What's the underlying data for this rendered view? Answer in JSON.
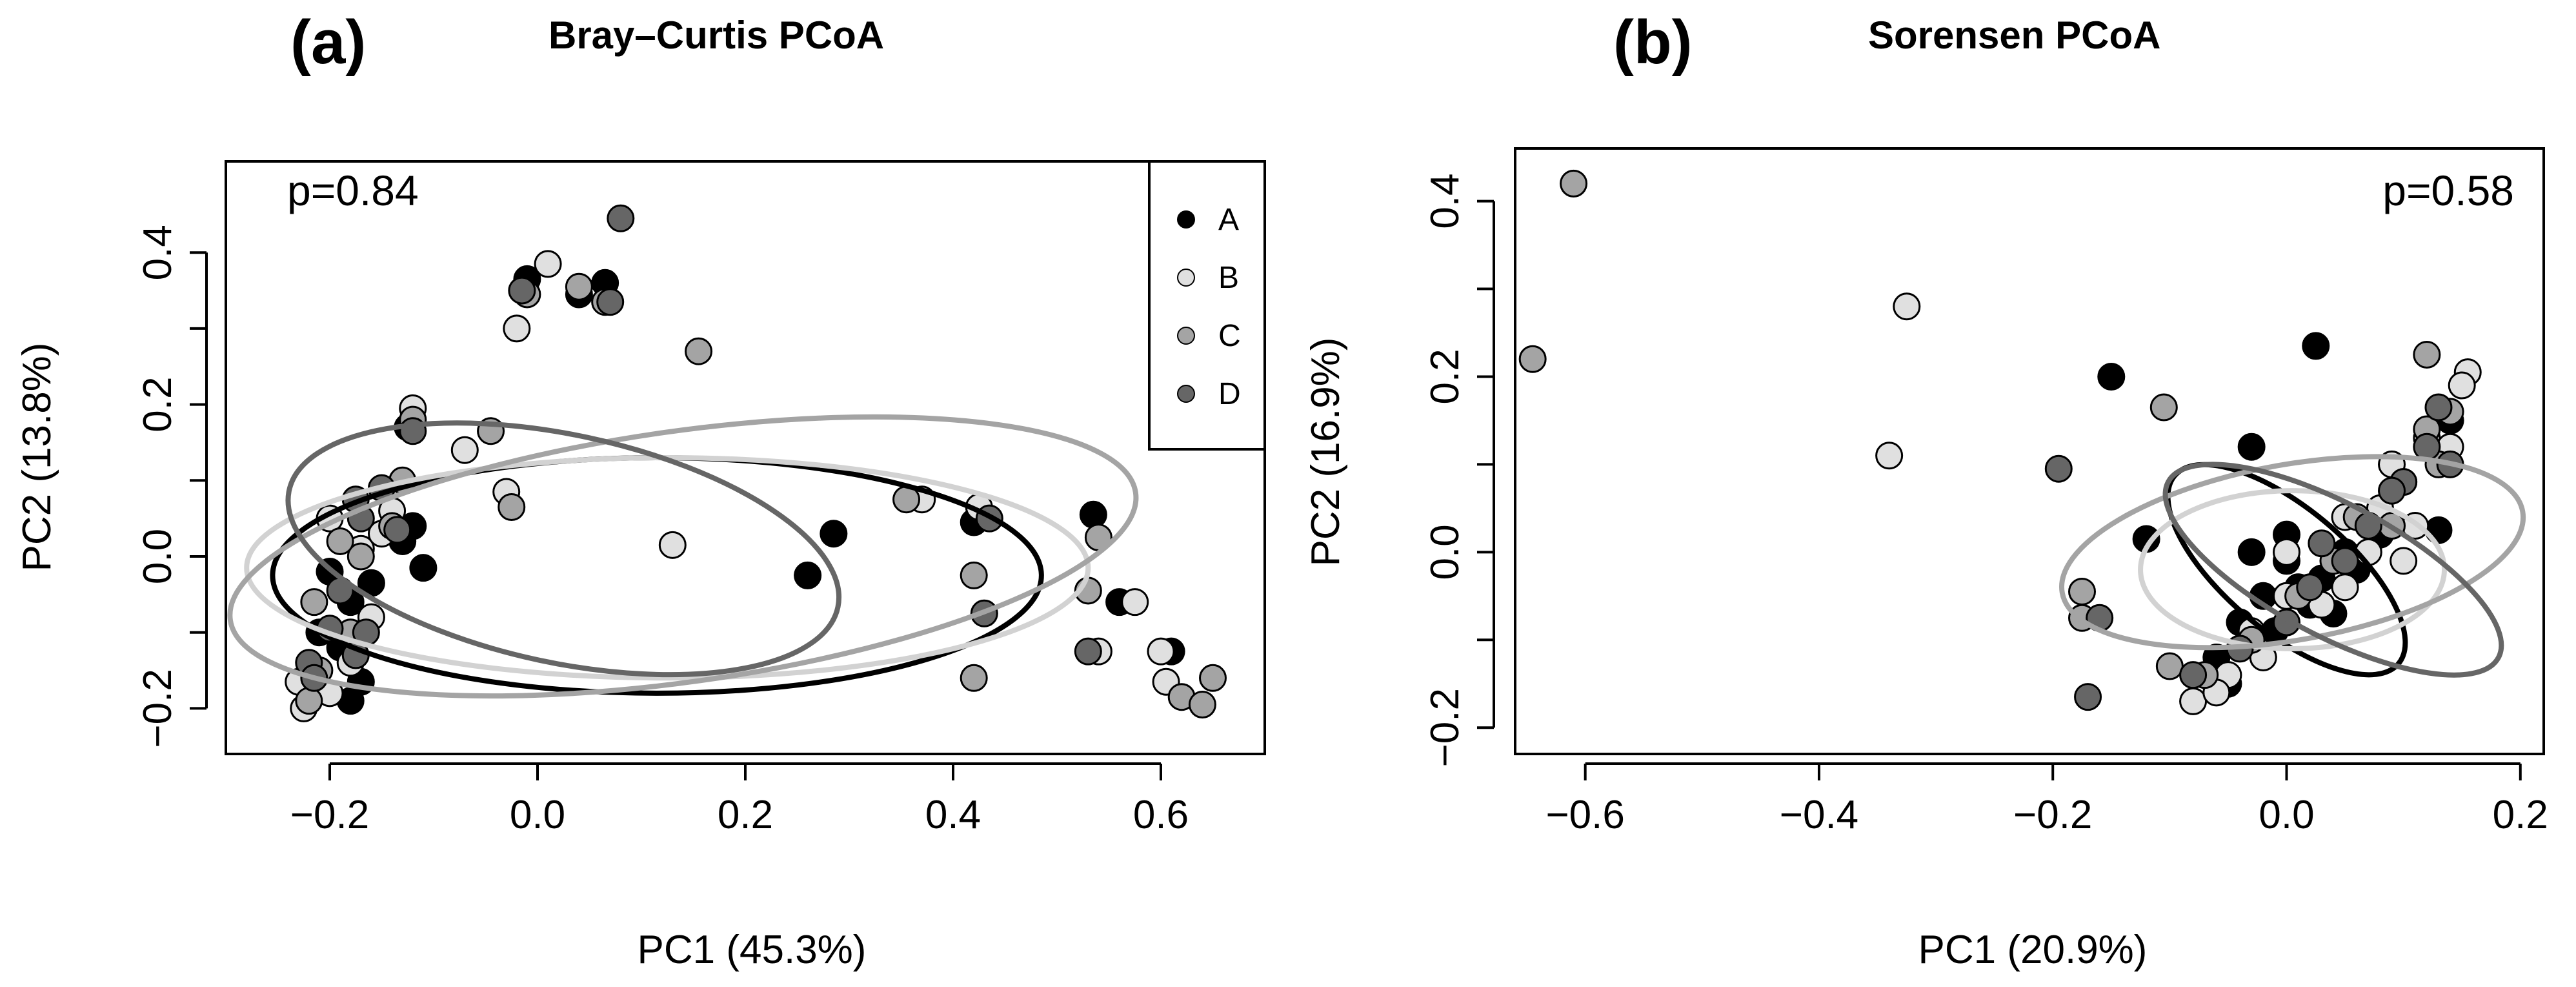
{
  "palette": {
    "A": "#000000",
    "B": "#e0e0e0",
    "C": "#a4a4a4",
    "D": "#666666",
    "B_ellipse": "#d2d2d2"
  },
  "chart_data": [
    {
      "id": "a",
      "panel_letter": "(a)",
      "type": "scatter",
      "title": "Bray–Curtis PCoA",
      "xlabel": "PC1 (45.3%)",
      "ylabel": "PC2 (13.8%)",
      "xlim": [
        -0.3,
        0.7
      ],
      "ylim": [
        -0.26,
        0.52
      ],
      "xticks": [
        {
          "v": -0.2,
          "label": "−0.2"
        },
        {
          "v": 0.0,
          "label": "0.0"
        },
        {
          "v": 0.2,
          "label": "0.2"
        },
        {
          "v": 0.4,
          "label": "0.4"
        },
        {
          "v": 0.6,
          "label": "0.6"
        }
      ],
      "yticks": [
        {
          "v": -0.2,
          "label": "−0.2"
        },
        {
          "v": 0.0,
          "label": "0.0"
        },
        {
          "v": 0.2,
          "label": "0.2"
        },
        {
          "v": 0.4,
          "label": "0.4"
        }
      ],
      "annotation": "p=0.84",
      "annotation_position": "top-left",
      "legend_position": "top-right",
      "legend": [
        {
          "key": "A",
          "label": "A"
        },
        {
          "key": "B",
          "label": "B"
        },
        {
          "key": "C",
          "label": "C"
        },
        {
          "key": "D",
          "label": "D"
        }
      ],
      "series": [
        {
          "key": "A",
          "name": "A",
          "points": [
            [
              -0.01,
              0.365
            ],
            [
              0.04,
              0.345
            ],
            [
              0.065,
              0.36
            ],
            [
              -0.2,
              -0.02
            ],
            [
              -0.18,
              -0.06
            ],
            [
              -0.16,
              -0.035
            ],
            [
              -0.13,
              0.02
            ],
            [
              -0.12,
              0.04
            ],
            [
              -0.11,
              -0.015
            ],
            [
              -0.17,
              -0.165
            ],
            [
              -0.18,
              -0.19
            ],
            [
              -0.21,
              -0.1
            ],
            [
              -0.125,
              0.17
            ],
            [
              0.285,
              0.03
            ],
            [
              0.26,
              -0.025
            ],
            [
              0.42,
              0.045
            ],
            [
              0.535,
              0.055
            ],
            [
              0.56,
              -0.06
            ],
            [
              0.61,
              -0.125
            ],
            [
              -0.22,
              -0.17
            ],
            [
              -0.19,
              -0.12
            ]
          ]
        },
        {
          "key": "B",
          "name": "B",
          "points": [
            [
              0.01,
              0.385
            ],
            [
              -0.02,
              0.3
            ],
            [
              -0.12,
              0.195
            ],
            [
              -0.07,
              0.14
            ],
            [
              -0.03,
              0.085
            ],
            [
              0.13,
              0.015
            ],
            [
              0.37,
              0.075
            ],
            [
              0.425,
              0.065
            ],
            [
              0.575,
              -0.06
            ],
            [
              0.6,
              -0.125
            ],
            [
              0.605,
              -0.165
            ],
            [
              0.54,
              -0.125
            ],
            [
              -0.2,
              0.05
            ],
            [
              -0.17,
              0.01
            ],
            [
              -0.15,
              0.03
            ],
            [
              -0.16,
              -0.08
            ],
            [
              -0.2,
              -0.18
            ],
            [
              -0.225,
              -0.2
            ],
            [
              -0.23,
              -0.165
            ],
            [
              -0.18,
              -0.14
            ],
            [
              -0.14,
              0.06
            ]
          ]
        },
        {
          "key": "C",
          "name": "C",
          "points": [
            [
              0.155,
              0.27
            ],
            [
              0.04,
              0.355
            ],
            [
              0.065,
              0.335
            ],
            [
              -0.01,
              0.345
            ],
            [
              -0.045,
              0.165
            ],
            [
              -0.025,
              0.065
            ],
            [
              0.355,
              0.075
            ],
            [
              0.42,
              -0.025
            ],
            [
              0.42,
              -0.16
            ],
            [
              0.53,
              -0.045
            ],
            [
              0.54,
              0.025
            ],
            [
              0.62,
              -0.185
            ],
            [
              0.64,
              -0.195
            ],
            [
              0.65,
              -0.16
            ],
            [
              -0.12,
              0.18
            ],
            [
              -0.13,
              0.1
            ],
            [
              -0.14,
              0.04
            ],
            [
              -0.17,
              0.0
            ],
            [
              -0.19,
              0.02
            ],
            [
              -0.18,
              -0.1
            ],
            [
              -0.215,
              -0.06
            ],
            [
              -0.21,
              -0.15
            ],
            [
              -0.22,
              -0.19
            ]
          ]
        },
        {
          "key": "D",
          "name": "D",
          "points": [
            [
              0.08,
              0.445
            ],
            [
              0.07,
              0.335
            ],
            [
              -0.015,
              0.35
            ],
            [
              -0.12,
              0.165
            ],
            [
              -0.15,
              0.09
            ],
            [
              -0.17,
              0.05
            ],
            [
              -0.175,
              0.075
            ],
            [
              -0.135,
              0.035
            ],
            [
              -0.19,
              -0.045
            ],
            [
              -0.2,
              -0.095
            ],
            [
              -0.175,
              -0.13
            ],
            [
              -0.22,
              -0.14
            ],
            [
              -0.215,
              -0.16
            ],
            [
              0.435,
              0.05
            ],
            [
              0.43,
              -0.075
            ],
            [
              0.53,
              -0.125
            ],
            [
              -0.165,
              -0.1
            ]
          ]
        }
      ],
      "ellipses": [
        {
          "key": "A",
          "cx": 0.115,
          "cy": -0.025,
          "rx": 0.37,
          "ry": 0.155,
          "angle": 0
        },
        {
          "key": "B",
          "cx": 0.125,
          "cy": -0.015,
          "rx": 0.405,
          "ry": 0.145,
          "angle": 0
        },
        {
          "key": "C",
          "cx": 0.14,
          "cy": 0.0,
          "rx": 0.44,
          "ry": 0.165,
          "angle": -8
        },
        {
          "key": "D",
          "cx": 0.025,
          "cy": 0.01,
          "rx": 0.27,
          "ry": 0.15,
          "angle": 12
        }
      ]
    },
    {
      "id": "b",
      "panel_letter": "(b)",
      "type": "scatter",
      "title": "Sorensen PCoA",
      "xlabel": "PC1 (20.9%)",
      "ylabel": "PC2 (16.9%)",
      "xlim": [
        -0.66,
        0.22
      ],
      "ylim": [
        -0.23,
        0.46
      ],
      "xticks": [
        {
          "v": -0.6,
          "label": "−0.6"
        },
        {
          "v": -0.4,
          "label": "−0.4"
        },
        {
          "v": -0.2,
          "label": "−0.2"
        },
        {
          "v": 0.0,
          "label": "0.0"
        },
        {
          "v": 0.2,
          "label": "0.2"
        }
      ],
      "yticks": [
        {
          "v": -0.2,
          "label": "−0.2"
        },
        {
          "v": 0.0,
          "label": "0.0"
        },
        {
          "v": 0.2,
          "label": "0.2"
        },
        {
          "v": 0.4,
          "label": "0.4"
        }
      ],
      "annotation": "p=0.58",
      "annotation_position": "top-right",
      "series": [
        {
          "key": "A",
          "name": "A",
          "points": [
            [
              0.025,
              0.235
            ],
            [
              -0.15,
              0.2
            ],
            [
              -0.03,
              0.12
            ],
            [
              -0.12,
              0.015
            ],
            [
              0.13,
              0.025
            ],
            [
              -0.03,
              0.0
            ],
            [
              0.0,
              -0.01
            ],
            [
              0.01,
              -0.04
            ],
            [
              -0.02,
              -0.05
            ],
            [
              0.03,
              -0.03
            ],
            [
              0.05,
              0.0
            ],
            [
              -0.04,
              -0.08
            ],
            [
              -0.06,
              -0.12
            ],
            [
              -0.05,
              -0.15
            ],
            [
              0.02,
              -0.06
            ],
            [
              0.08,
              0.02
            ],
            [
              0.14,
              0.15
            ],
            [
              -0.01,
              -0.09
            ],
            [
              0.04,
              -0.07
            ],
            [
              0.06,
              -0.02
            ],
            [
              0.0,
              0.02
            ]
          ]
        },
        {
          "key": "B",
          "name": "B",
          "points": [
            [
              -0.325,
              0.28
            ],
            [
              -0.34,
              0.11
            ],
            [
              0.155,
              0.205
            ],
            [
              0.15,
              0.19
            ],
            [
              0.12,
              0.13
            ],
            [
              0.09,
              0.1
            ],
            [
              0.05,
              0.04
            ],
            [
              0.07,
              0.0
            ],
            [
              0.1,
              -0.01
            ],
            [
              0.0,
              -0.05
            ],
            [
              -0.03,
              -0.09
            ],
            [
              -0.05,
              -0.14
            ],
            [
              -0.08,
              -0.17
            ],
            [
              -0.06,
              -0.16
            ],
            [
              -0.02,
              -0.12
            ],
            [
              0.03,
              -0.06
            ],
            [
              0.11,
              0.03
            ],
            [
              0.14,
              0.12
            ],
            [
              0.08,
              0.05
            ],
            [
              0.0,
              0.0
            ],
            [
              0.05,
              -0.04
            ]
          ]
        },
        {
          "key": "C",
          "name": "C",
          "points": [
            [
              -0.645,
              0.22
            ],
            [
              -0.61,
              0.42
            ],
            [
              -0.105,
              0.165
            ],
            [
              0.12,
              0.225
            ],
            [
              -0.175,
              -0.045
            ],
            [
              -0.175,
              -0.075
            ],
            [
              -0.1,
              -0.13
            ],
            [
              0.14,
              0.16
            ],
            [
              0.13,
              0.1
            ],
            [
              0.1,
              0.08
            ],
            [
              0.06,
              0.04
            ],
            [
              0.04,
              -0.01
            ],
            [
              0.01,
              -0.05
            ],
            [
              -0.03,
              -0.1
            ],
            [
              -0.07,
              -0.14
            ],
            [
              0.09,
              0.03
            ],
            [
              0.12,
              0.14
            ]
          ]
        },
        {
          "key": "D",
          "name": "D",
          "points": [
            [
              -0.195,
              0.095
            ],
            [
              -0.16,
              -0.075
            ],
            [
              -0.17,
              -0.165
            ],
            [
              0.13,
              0.165
            ],
            [
              0.14,
              0.1
            ],
            [
              0.12,
              0.12
            ],
            [
              0.1,
              0.08
            ],
            [
              0.07,
              0.03
            ],
            [
              0.05,
              -0.01
            ],
            [
              0.02,
              -0.04
            ],
            [
              0.0,
              -0.08
            ],
            [
              -0.04,
              -0.11
            ],
            [
              -0.08,
              -0.14
            ],
            [
              0.09,
              0.07
            ],
            [
              0.03,
              0.01
            ]
          ]
        }
      ],
      "ellipses": [
        {
          "key": "A",
          "cx": 0.0,
          "cy": -0.02,
          "rx": 0.125,
          "ry": 0.07,
          "angle": 40
        },
        {
          "key": "B",
          "cx": 0.005,
          "cy": -0.02,
          "rx": 0.13,
          "ry": 0.09,
          "angle": 0
        },
        {
          "key": "C",
          "cx": 0.005,
          "cy": 0.0,
          "rx": 0.2,
          "ry": 0.1,
          "angle": -10
        },
        {
          "key": "D",
          "cx": 0.04,
          "cy": -0.02,
          "rx": 0.16,
          "ry": 0.075,
          "angle": 28
        }
      ]
    }
  ]
}
